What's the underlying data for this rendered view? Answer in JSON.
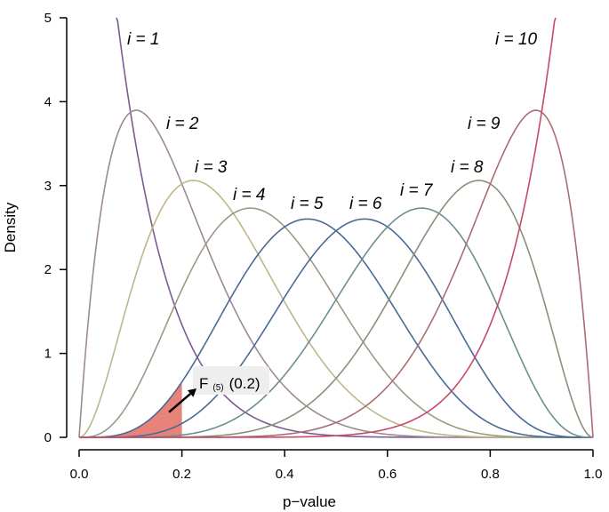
{
  "chart_data": {
    "type": "line",
    "title": "",
    "xlabel": "p−value",
    "ylabel": "Density",
    "xlim": [
      0,
      1
    ],
    "ylim": [
      0,
      5
    ],
    "x_ticks": [
      "0.0",
      "0.2",
      "0.4",
      "0.6",
      "0.8",
      "1.0"
    ],
    "y_ticks": [
      "0",
      "1",
      "2",
      "3",
      "4",
      "5"
    ],
    "grid": false,
    "legend": "none",
    "distribution": "beta order statistic, k=10",
    "series": [
      {
        "label": "i = 1",
        "alpha": 1,
        "beta": 10,
        "color": "#7b5a95"
      },
      {
        "label": "i = 2",
        "alpha": 2,
        "beta": 9,
        "color": "#9d8a92"
      },
      {
        "label": "i = 3",
        "alpha": 3,
        "beta": 8,
        "color": "#bfb68a"
      },
      {
        "label": "i = 4",
        "alpha": 4,
        "beta": 7,
        "color": "#9a9a86"
      },
      {
        "label": "i = 5",
        "alpha": 5,
        "beta": 6,
        "color": "#4a6a94"
      },
      {
        "label": "i = 6",
        "alpha": 6,
        "beta": 5,
        "color": "#4a6a94"
      },
      {
        "label": "i = 7",
        "alpha": 7,
        "beta": 4,
        "color": "#6e8e92"
      },
      {
        "label": "i = 8",
        "alpha": 8,
        "beta": 3,
        "color": "#8a907a"
      },
      {
        "label": "i = 9",
        "alpha": 9,
        "beta": 2,
        "color": "#a86e72"
      },
      {
        "label": "i = 10",
        "alpha": 10,
        "beta": 1,
        "color": "#c84a68"
      }
    ],
    "shaded_region": {
      "series_index": 4,
      "x_from": 0,
      "x_to": 0.2,
      "color": "#e8837a"
    },
    "annotation": {
      "text_main": "F",
      "text_sub": "(5)",
      "text_tail": "(0.2)",
      "arrow_to": [
        0.175,
        0.3
      ]
    }
  }
}
